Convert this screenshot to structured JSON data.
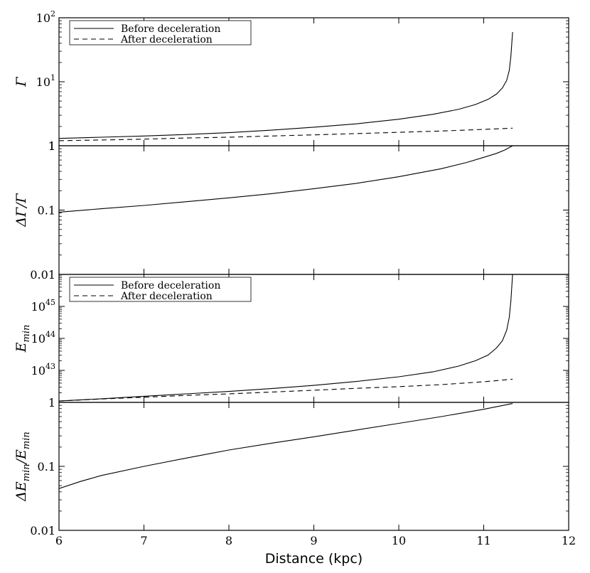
{
  "chart_data": [
    {
      "type": "line",
      "panel": "Gamma",
      "ylabel_main": "Γ",
      "ylabel_sub": "",
      "yscale": "log",
      "ylim": [
        1,
        100
      ],
      "xlim": [
        6,
        12
      ],
      "y_ticks": [
        {
          "base": "1",
          "exp": ""
        },
        {
          "base": "10",
          "exp": "1"
        },
        {
          "base": "10",
          "exp": "2"
        }
      ],
      "legend": {
        "position": "top-left"
      },
      "series": [
        {
          "name": "Before deceleration",
          "style": "solid",
          "x": [
            6.0,
            6.5,
            7.0,
            7.5,
            8.0,
            8.5,
            9.0,
            9.5,
            10.0,
            10.4,
            10.7,
            10.9,
            11.05,
            11.15,
            11.22,
            11.27,
            11.3,
            11.32,
            11.34
          ],
          "y": [
            1.3,
            1.36,
            1.42,
            1.5,
            1.6,
            1.75,
            1.95,
            2.2,
            2.6,
            3.1,
            3.7,
            4.4,
            5.3,
            6.4,
            8.0,
            10.5,
            15.0,
            25.0,
            60.0
          ]
        },
        {
          "name": "After deceleration",
          "style": "dashed",
          "x": [
            6.0,
            6.5,
            7.0,
            7.5,
            8.0,
            8.5,
            9.0,
            9.5,
            10.0,
            10.5,
            11.0,
            11.34
          ],
          "y": [
            1.2,
            1.23,
            1.27,
            1.32,
            1.36,
            1.42,
            1.48,
            1.55,
            1.62,
            1.7,
            1.8,
            1.88
          ]
        }
      ]
    },
    {
      "type": "line",
      "panel": "dGamma",
      "ylabel_main": "ΔΓ/Γ",
      "ylabel_sub": "",
      "yscale": "log",
      "ylim": [
        0.01,
        1
      ],
      "xlim": [
        6,
        12
      ],
      "y_ticks": [
        {
          "base": "0.01",
          "exp": ""
        },
        {
          "base": "0.1",
          "exp": ""
        },
        {
          "base": "1",
          "exp": ""
        }
      ],
      "series": [
        {
          "name": "",
          "style": "solid",
          "x": [
            6.0,
            6.5,
            7.0,
            7.5,
            8.0,
            8.5,
            9.0,
            9.5,
            10.0,
            10.5,
            10.8,
            11.0,
            11.15,
            11.25,
            11.34
          ],
          "y": [
            0.093,
            0.105,
            0.118,
            0.135,
            0.155,
            0.18,
            0.215,
            0.26,
            0.33,
            0.44,
            0.55,
            0.66,
            0.76,
            0.86,
            1.0
          ]
        }
      ]
    },
    {
      "type": "line",
      "panel": "Emin",
      "ylabel_main": "E",
      "ylabel_sub": "min",
      "yscale": "log",
      "ylim": [
        1e+42,
        1e+46
      ],
      "xlim": [
        6,
        12
      ],
      "y_ticks": [
        {
          "base": "1",
          "exp": ""
        },
        {
          "base": "10",
          "exp": "43"
        },
        {
          "base": "10",
          "exp": "44"
        },
        {
          "base": "10",
          "exp": "45"
        }
      ],
      "legend": {
        "position": "top-left"
      },
      "series": [
        {
          "name": "Before deceleration",
          "style": "solid",
          "x": [
            6.0,
            6.5,
            7.0,
            7.5,
            8.0,
            8.5,
            9.0,
            9.5,
            10.0,
            10.4,
            10.7,
            10.9,
            11.05,
            11.15,
            11.22,
            11.27,
            11.3,
            11.32,
            11.34
          ],
          "y": [
            1.1e+42,
            1.3e+42,
            1.55e+42,
            1.85e+42,
            2.2e+42,
            2.7e+42,
            3.4e+42,
            4.5e+42,
            6.3e+42,
            9e+42,
            1.35e+43,
            2e+43,
            3e+43,
            5e+43,
            8.5e+43,
            1.8e+44,
            4.5e+44,
            1.5e+45,
            1e+46
          ]
        },
        {
          "name": "After deceleration",
          "style": "dashed",
          "x": [
            6.0,
            6.5,
            7.0,
            7.5,
            8.0,
            8.5,
            9.0,
            9.5,
            10.0,
            10.5,
            11.0,
            11.34
          ],
          "y": [
            1.1e+42,
            1.28e+42,
            1.45e+42,
            1.65e+42,
            1.85e+42,
            2.1e+42,
            2.4e+42,
            2.75e+42,
            3.1e+42,
            3.6e+42,
            4.4e+42,
            5.3e+42
          ]
        }
      ]
    },
    {
      "type": "line",
      "panel": "dEmin",
      "ylabel_main": "ΔE",
      "ylabel_sub": "min",
      "ylabel_mid": "/E",
      "ylabel_sub2": "min",
      "yscale": "log",
      "ylim": [
        0.01,
        1
      ],
      "xlim": [
        6,
        12
      ],
      "xlabel": "Distance (kpc)",
      "x_ticks": [
        "6",
        "7",
        "8",
        "9",
        "10",
        "11",
        "12"
      ],
      "y_ticks": [
        {
          "base": "0.01",
          "exp": ""
        },
        {
          "base": "0.1",
          "exp": ""
        }
      ],
      "series": [
        {
          "name": "",
          "style": "solid",
          "x": [
            6.0,
            6.25,
            6.5,
            7.0,
            7.5,
            8.0,
            8.5,
            9.0,
            9.5,
            10.0,
            10.5,
            11.0,
            11.34
          ],
          "y": [
            0.045,
            0.058,
            0.072,
            0.1,
            0.135,
            0.18,
            0.23,
            0.29,
            0.37,
            0.47,
            0.6,
            0.78,
            0.96
          ]
        }
      ]
    }
  ]
}
